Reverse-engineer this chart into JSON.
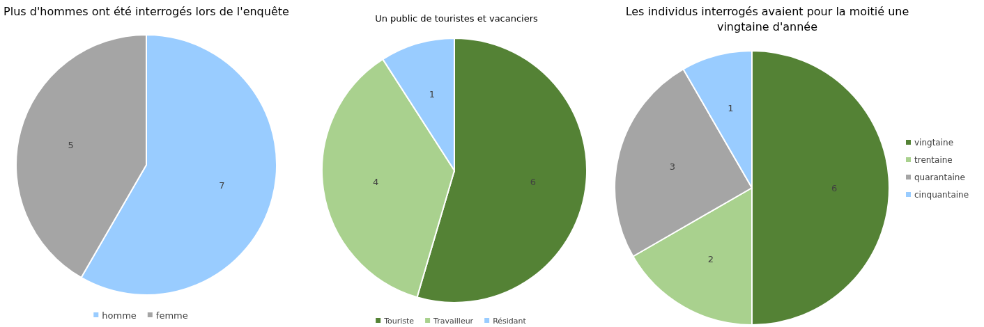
{
  "chart_data": [
    {
      "type": "pie",
      "title": "Plus d'hommes ont été interrogés lors de l'enquête",
      "categories": [
        "homme",
        "femme"
      ],
      "values": [
        7,
        5
      ],
      "colors": [
        "#99ccff",
        "#a5a5a5"
      ],
      "data_labels": true,
      "legend": "bottom"
    },
    {
      "type": "pie",
      "title": "Un public de touristes et vacanciers",
      "categories": [
        "Touriste",
        "Travailleur",
        "Résidant"
      ],
      "values": [
        6,
        4,
        1
      ],
      "colors": [
        "#548235",
        "#a9d18e",
        "#99ccff"
      ],
      "data_labels": true,
      "legend": "bottom"
    },
    {
      "type": "pie",
      "title": "Les individus interrogés avaient pour la moitié une vingtaine d'année",
      "categories": [
        "vingtaine",
        "trentaine",
        "quarantaine",
        "cinquantaine"
      ],
      "values": [
        6,
        2,
        3,
        1
      ],
      "colors": [
        "#548235",
        "#a9d18e",
        "#a5a5a5",
        "#99ccff"
      ],
      "data_labels": true,
      "legend": "right"
    }
  ]
}
